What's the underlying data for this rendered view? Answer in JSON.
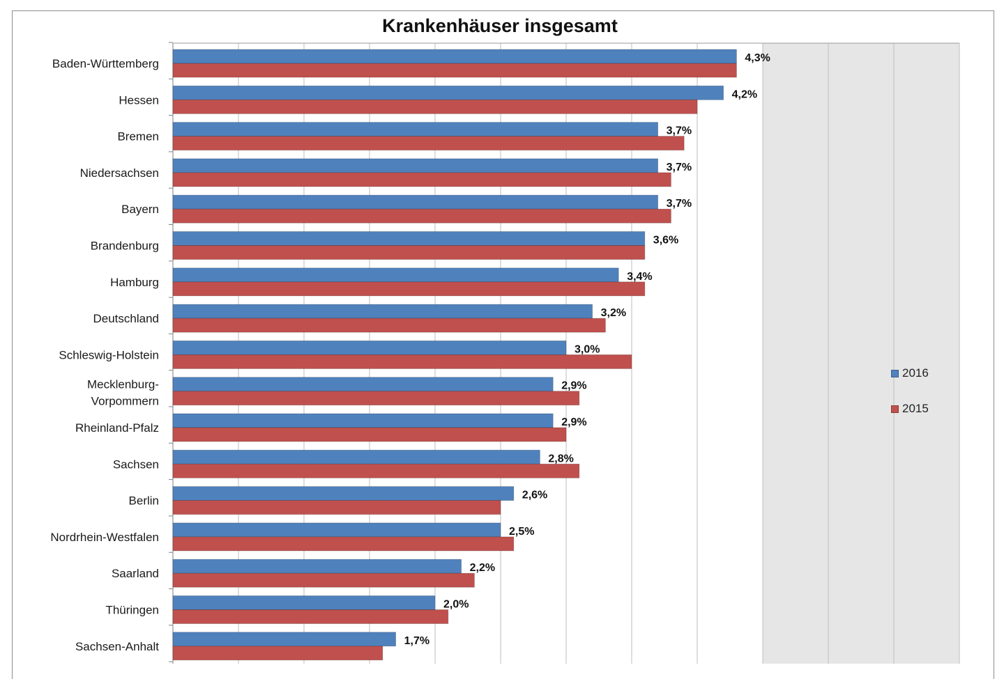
{
  "chart_data": {
    "type": "bar",
    "orientation": "horizontal",
    "title": "Krankenhäuser insgesamt",
    "categories": [
      "Baden-Württemberg",
      "Hessen",
      "Bremen",
      "Niedersachsen",
      "Bayern",
      "Brandenburg",
      "Hamburg",
      "Deutschland",
      "Schleswig-Holstein",
      "Mecklenburg-Vorpommern",
      "Rheinland-Pfalz",
      "Sachsen",
      "Berlin",
      "Nordrhein-Westfalen",
      "Saarland",
      "Thüringen",
      "Sachsen-Anhalt"
    ],
    "category_label_lines": [
      [
        "Baden-Württemberg"
      ],
      [
        "Hessen"
      ],
      [
        "Bremen"
      ],
      [
        "Niedersachsen"
      ],
      [
        "Bayern"
      ],
      [
        "Brandenburg"
      ],
      [
        "Hamburg"
      ],
      [
        "Deutschland"
      ],
      [
        "Schleswig-Holstein"
      ],
      [
        "Mecklenburg-",
        "Vorpommern"
      ],
      [
        "Rheinland-Pfalz"
      ],
      [
        "Sachsen"
      ],
      [
        "Berlin"
      ],
      [
        "Nordrhein-Westfalen"
      ],
      [
        "Saarland"
      ],
      [
        "Thüringen"
      ],
      [
        "Sachsen-Anhalt"
      ]
    ],
    "series": [
      {
        "name": "2016",
        "color": "#4f81bd",
        "values": [
          4.3,
          4.2,
          3.7,
          3.7,
          3.7,
          3.6,
          3.4,
          3.2,
          3.0,
          2.9,
          2.9,
          2.8,
          2.6,
          2.5,
          2.2,
          2.0,
          1.7
        ],
        "data_labels": [
          "4,3%",
          "4,2%",
          "3,7%",
          "3,7%",
          "3,7%",
          "3,6%",
          "3,4%",
          "3,2%",
          "3,0%",
          "2,9%",
          "2,9%",
          "2,8%",
          "2,6%",
          "2,5%",
          "2,2%",
          "2,0%",
          "1,7%"
        ]
      },
      {
        "name": "2015",
        "color": "#c0504d",
        "values": [
          4.3,
          4.0,
          3.9,
          3.8,
          3.8,
          3.6,
          3.6,
          3.3,
          3.5,
          3.1,
          3.0,
          3.1,
          2.5,
          2.6,
          2.3,
          2.1,
          1.6
        ]
      }
    ],
    "xlim": [
      0,
      6.0
    ],
    "x_gridlines_every": 0.5,
    "shaded_band_from": 4.5,
    "legend_position": "right",
    "grid": true
  }
}
